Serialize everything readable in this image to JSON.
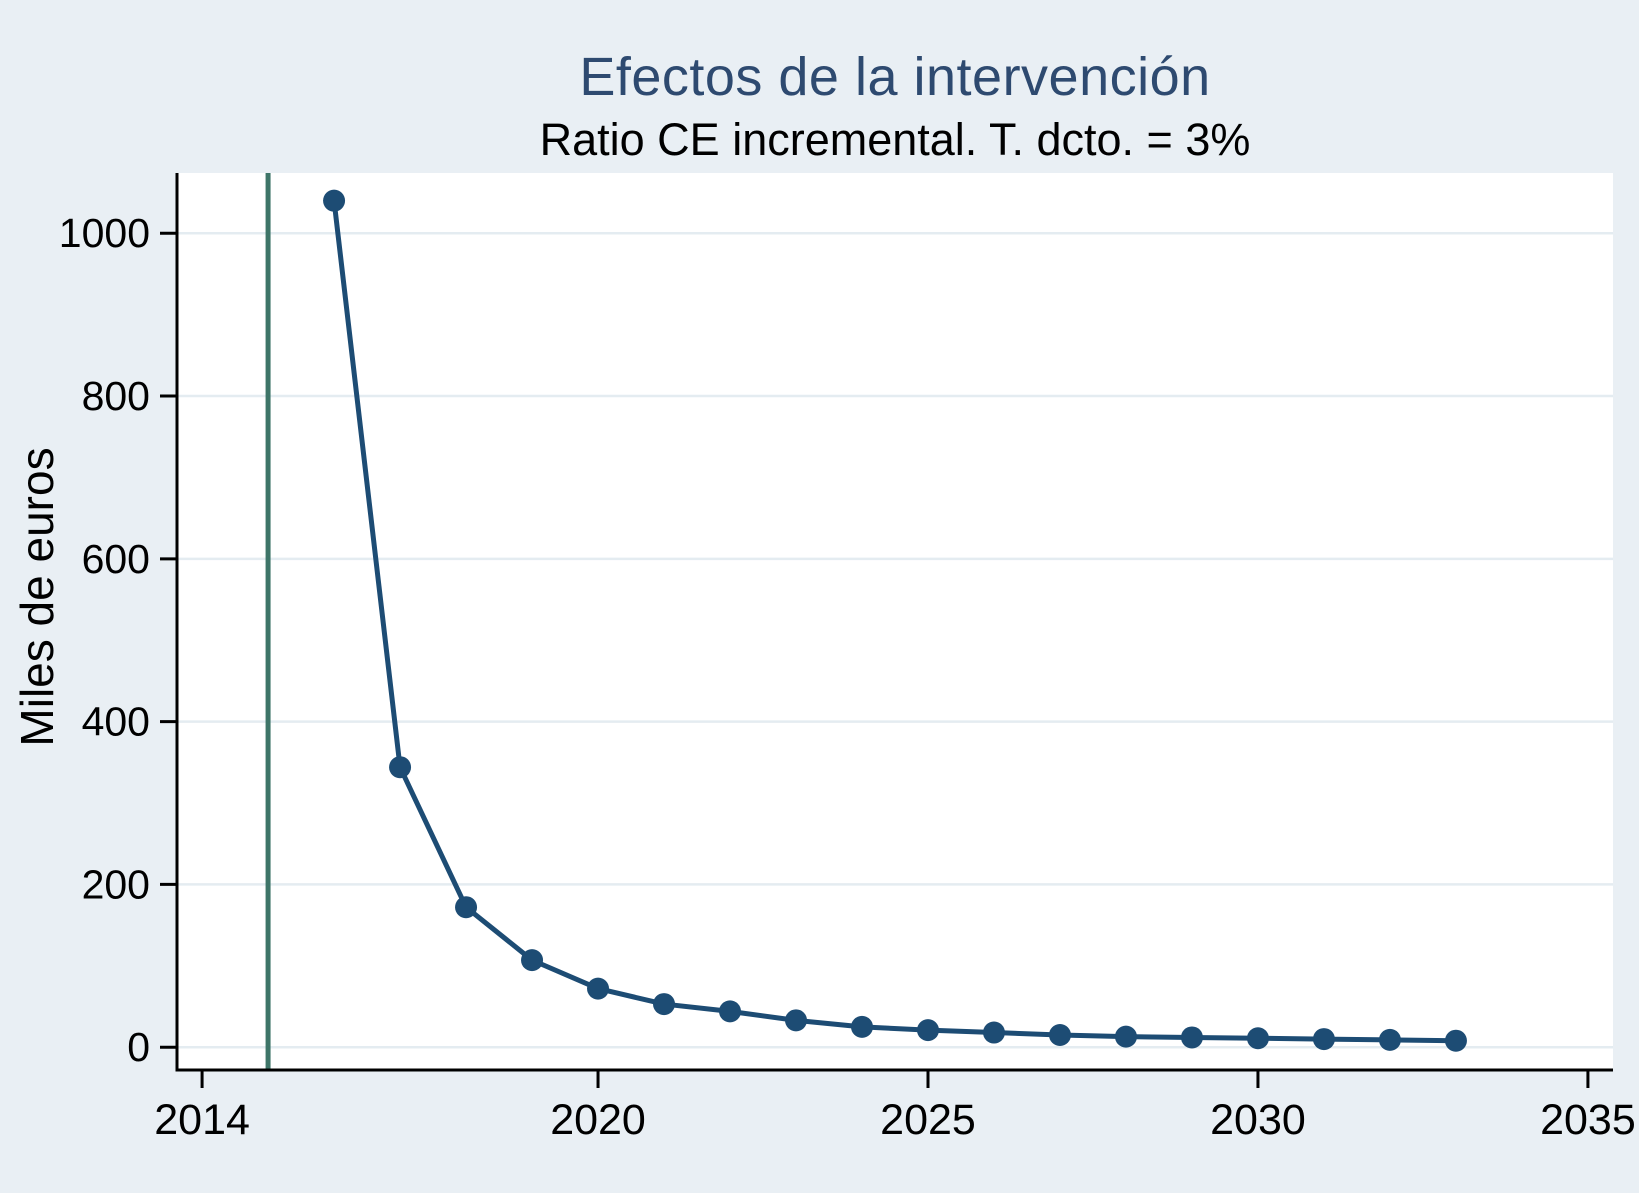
{
  "chart_data": {
    "type": "line",
    "title": "Efectos de la intervención",
    "subtitle": "Ratio CE incremental. T. dcto. = 3%",
    "ylabel": "Miles de euros",
    "xlabel": "",
    "x": [
      2016,
      2017,
      2018,
      2019,
      2020,
      2021,
      2022,
      2023,
      2024,
      2025,
      2026,
      2027,
      2028,
      2029,
      2030,
      2031,
      2032,
      2033
    ],
    "series": [
      {
        "name": "Ratio CE incremental",
        "values": [
          1040,
          344,
          172,
          107,
          72,
          53,
          44,
          33,
          25,
          21,
          18,
          15,
          13,
          12,
          11,
          10,
          9,
          8
        ]
      }
    ],
    "xticks": [
      2014,
      2020,
      2025,
      2030,
      2035
    ],
    "yticks": [
      0,
      200,
      400,
      600,
      800,
      1000
    ],
    "xlim": [
      2013.62,
      2035.38
    ],
    "ylim": [
      -28,
      1074
    ],
    "grid": "horizontal-only",
    "legend_position": "none",
    "reference_line_x": 2015,
    "marker": "circle",
    "colors": {
      "background": "#e9eff4",
      "plot_background": "#ffffff",
      "grid": "#e4ecf1",
      "series": "#1d4c74",
      "reference_line": "#3e7568",
      "axis": "#000000",
      "title": "#2e4a70",
      "text": "#000000"
    }
  }
}
